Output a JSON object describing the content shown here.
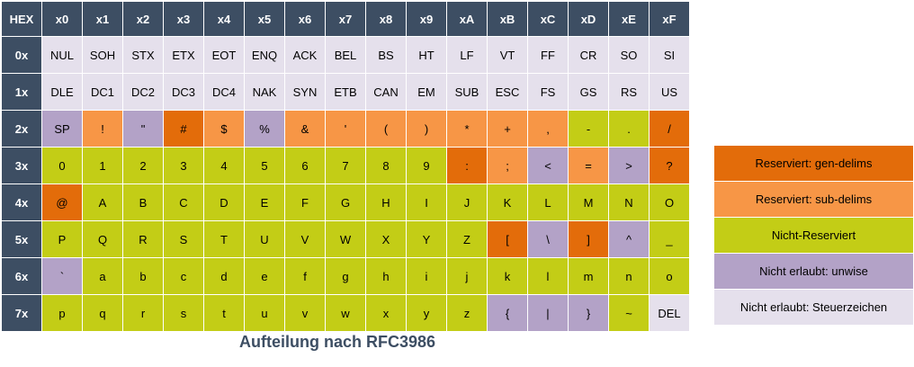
{
  "colors": {
    "header": "#3d4e63",
    "gen": "#e36c0a",
    "sub": "#f79646",
    "unreserved": "#c3cd16",
    "unwise": "#b3a2c7",
    "ctrl": "#e5e0ec"
  },
  "table": {
    "corner": "HEX",
    "columns": [
      "x0",
      "x1",
      "x2",
      "x3",
      "x4",
      "x5",
      "x6",
      "x7",
      "x8",
      "x9",
      "xA",
      "xB",
      "xC",
      "xD",
      "xE",
      "xF"
    ],
    "rows": [
      {
        "label": "0x",
        "cells": [
          {
            "t": "NUL",
            "c": "ctrl"
          },
          {
            "t": "SOH",
            "c": "ctrl"
          },
          {
            "t": "STX",
            "c": "ctrl"
          },
          {
            "t": "ETX",
            "c": "ctrl"
          },
          {
            "t": "EOT",
            "c": "ctrl"
          },
          {
            "t": "ENQ",
            "c": "ctrl"
          },
          {
            "t": "ACK",
            "c": "ctrl"
          },
          {
            "t": "BEL",
            "c": "ctrl"
          },
          {
            "t": "BS",
            "c": "ctrl"
          },
          {
            "t": "HT",
            "c": "ctrl"
          },
          {
            "t": "LF",
            "c": "ctrl"
          },
          {
            "t": "VT",
            "c": "ctrl"
          },
          {
            "t": "FF",
            "c": "ctrl"
          },
          {
            "t": "CR",
            "c": "ctrl"
          },
          {
            "t": "SO",
            "c": "ctrl"
          },
          {
            "t": "SI",
            "c": "ctrl"
          }
        ]
      },
      {
        "label": "1x",
        "cells": [
          {
            "t": "DLE",
            "c": "ctrl"
          },
          {
            "t": "DC1",
            "c": "ctrl"
          },
          {
            "t": "DC2",
            "c": "ctrl"
          },
          {
            "t": "DC3",
            "c": "ctrl"
          },
          {
            "t": "DC4",
            "c": "ctrl"
          },
          {
            "t": "NAK",
            "c": "ctrl"
          },
          {
            "t": "SYN",
            "c": "ctrl"
          },
          {
            "t": "ETB",
            "c": "ctrl"
          },
          {
            "t": "CAN",
            "c": "ctrl"
          },
          {
            "t": "EM",
            "c": "ctrl"
          },
          {
            "t": "SUB",
            "c": "ctrl"
          },
          {
            "t": "ESC",
            "c": "ctrl"
          },
          {
            "t": "FS",
            "c": "ctrl"
          },
          {
            "t": "GS",
            "c": "ctrl"
          },
          {
            "t": "RS",
            "c": "ctrl"
          },
          {
            "t": "US",
            "c": "ctrl"
          }
        ]
      },
      {
        "label": "2x",
        "cells": [
          {
            "t": "SP",
            "c": "unwise"
          },
          {
            "t": "!",
            "c": "sub"
          },
          {
            "t": "\"",
            "c": "unwise"
          },
          {
            "t": "#",
            "c": "gen"
          },
          {
            "t": "$",
            "c": "sub"
          },
          {
            "t": "%",
            "c": "unwise"
          },
          {
            "t": "&",
            "c": "sub"
          },
          {
            "t": "'",
            "c": "sub"
          },
          {
            "t": "(",
            "c": "sub"
          },
          {
            "t": ")",
            "c": "sub"
          },
          {
            "t": "*",
            "c": "sub"
          },
          {
            "t": "+",
            "c": "sub"
          },
          {
            "t": ",",
            "c": "sub"
          },
          {
            "t": "-",
            "c": "unreserved"
          },
          {
            "t": ".",
            "c": "unreserved"
          },
          {
            "t": "/",
            "c": "gen"
          }
        ]
      },
      {
        "label": "3x",
        "cells": [
          {
            "t": "0",
            "c": "unreserved"
          },
          {
            "t": "1",
            "c": "unreserved"
          },
          {
            "t": "2",
            "c": "unreserved"
          },
          {
            "t": "3",
            "c": "unreserved"
          },
          {
            "t": "4",
            "c": "unreserved"
          },
          {
            "t": "5",
            "c": "unreserved"
          },
          {
            "t": "6",
            "c": "unreserved"
          },
          {
            "t": "7",
            "c": "unreserved"
          },
          {
            "t": "8",
            "c": "unreserved"
          },
          {
            "t": "9",
            "c": "unreserved"
          },
          {
            "t": ":",
            "c": "gen"
          },
          {
            "t": ";",
            "c": "sub"
          },
          {
            "t": "<",
            "c": "unwise"
          },
          {
            "t": "=",
            "c": "sub"
          },
          {
            "t": ">",
            "c": "unwise"
          },
          {
            "t": "?",
            "c": "gen"
          }
        ]
      },
      {
        "label": "4x",
        "cells": [
          {
            "t": "@",
            "c": "gen"
          },
          {
            "t": "A",
            "c": "unreserved"
          },
          {
            "t": "B",
            "c": "unreserved"
          },
          {
            "t": "C",
            "c": "unreserved"
          },
          {
            "t": "D",
            "c": "unreserved"
          },
          {
            "t": "E",
            "c": "unreserved"
          },
          {
            "t": "F",
            "c": "unreserved"
          },
          {
            "t": "G",
            "c": "unreserved"
          },
          {
            "t": "H",
            "c": "unreserved"
          },
          {
            "t": "I",
            "c": "unreserved"
          },
          {
            "t": "J",
            "c": "unreserved"
          },
          {
            "t": "K",
            "c": "unreserved"
          },
          {
            "t": "L",
            "c": "unreserved"
          },
          {
            "t": "M",
            "c": "unreserved"
          },
          {
            "t": "N",
            "c": "unreserved"
          },
          {
            "t": "O",
            "c": "unreserved"
          }
        ]
      },
      {
        "label": "5x",
        "cells": [
          {
            "t": "P",
            "c": "unreserved"
          },
          {
            "t": "Q",
            "c": "unreserved"
          },
          {
            "t": "R",
            "c": "unreserved"
          },
          {
            "t": "S",
            "c": "unreserved"
          },
          {
            "t": "T",
            "c": "unreserved"
          },
          {
            "t": "U",
            "c": "unreserved"
          },
          {
            "t": "V",
            "c": "unreserved"
          },
          {
            "t": "W",
            "c": "unreserved"
          },
          {
            "t": "X",
            "c": "unreserved"
          },
          {
            "t": "Y",
            "c": "unreserved"
          },
          {
            "t": "Z",
            "c": "unreserved"
          },
          {
            "t": "[",
            "c": "gen"
          },
          {
            "t": "\\",
            "c": "unwise"
          },
          {
            "t": "]",
            "c": "gen"
          },
          {
            "t": "^",
            "c": "unwise"
          },
          {
            "t": "_",
            "c": "unreserved"
          }
        ]
      },
      {
        "label": "6x",
        "cells": [
          {
            "t": "`",
            "c": "unwise"
          },
          {
            "t": "a",
            "c": "unreserved"
          },
          {
            "t": "b",
            "c": "unreserved"
          },
          {
            "t": "c",
            "c": "unreserved"
          },
          {
            "t": "d",
            "c": "unreserved"
          },
          {
            "t": "e",
            "c": "unreserved"
          },
          {
            "t": "f",
            "c": "unreserved"
          },
          {
            "t": "g",
            "c": "unreserved"
          },
          {
            "t": "h",
            "c": "unreserved"
          },
          {
            "t": "i",
            "c": "unreserved"
          },
          {
            "t": "j",
            "c": "unreserved"
          },
          {
            "t": "k",
            "c": "unreserved"
          },
          {
            "t": "l",
            "c": "unreserved"
          },
          {
            "t": "m",
            "c": "unreserved"
          },
          {
            "t": "n",
            "c": "unreserved"
          },
          {
            "t": "o",
            "c": "unreserved"
          }
        ]
      },
      {
        "label": "7x",
        "cells": [
          {
            "t": "p",
            "c": "unreserved"
          },
          {
            "t": "q",
            "c": "unreserved"
          },
          {
            "t": "r",
            "c": "unreserved"
          },
          {
            "t": "s",
            "c": "unreserved"
          },
          {
            "t": "t",
            "c": "unreserved"
          },
          {
            "t": "u",
            "c": "unreserved"
          },
          {
            "t": "v",
            "c": "unreserved"
          },
          {
            "t": "w",
            "c": "unreserved"
          },
          {
            "t": "x",
            "c": "unreserved"
          },
          {
            "t": "y",
            "c": "unreserved"
          },
          {
            "t": "z",
            "c": "unreserved"
          },
          {
            "t": "{",
            "c": "unwise"
          },
          {
            "t": "|",
            "c": "unwise"
          },
          {
            "t": "}",
            "c": "unwise"
          },
          {
            "t": "~",
            "c": "unreserved"
          },
          {
            "t": "DEL",
            "c": "ctrl"
          }
        ]
      }
    ]
  },
  "caption": "Aufteilung nach RFC3986",
  "legend": [
    {
      "label": "Reserviert: gen-delims",
      "c": "gen"
    },
    {
      "label": "Reserviert: sub-delims",
      "c": "sub"
    },
    {
      "label": "Nicht-Reserviert",
      "c": "unreserved"
    },
    {
      "label": "Nicht erlaubt: unwise",
      "c": "unwise"
    },
    {
      "label": "Nicht erlaubt: Steuerzeichen",
      "c": "ctrl"
    }
  ]
}
